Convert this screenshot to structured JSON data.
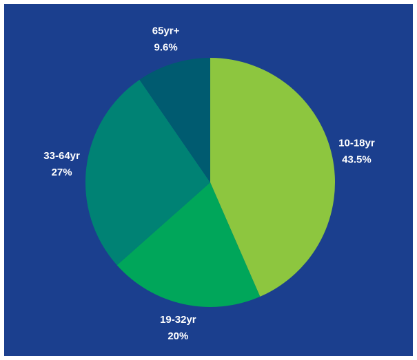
{
  "chart_data": {
    "type": "pie",
    "categories": [
      "10-18yr",
      "19-32yr",
      "33-64yr",
      "65yr+"
    ],
    "values": [
      43.5,
      20,
      27,
      9.6
    ],
    "value_labels": [
      "43.5%",
      "20%",
      "27%",
      "9.6%"
    ],
    "colors": [
      "#8dc63f",
      "#00a65a",
      "#008274",
      "#005b70"
    ],
    "background": "#1b3f8e"
  }
}
